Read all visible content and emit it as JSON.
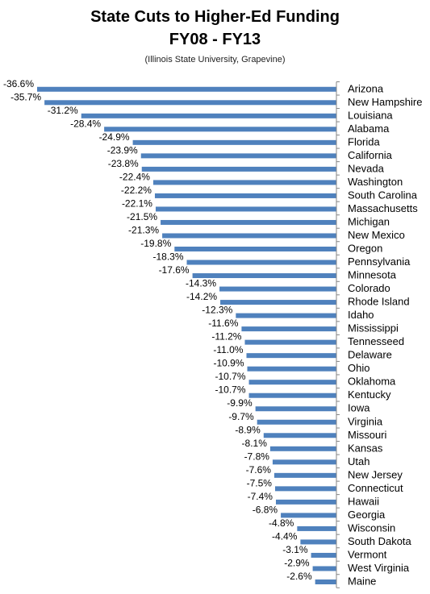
{
  "chart_data": {
    "type": "bar",
    "orientation": "horizontal",
    "title": "State Cuts to Higher-Ed Funding",
    "subtitle": "FY08 - FY13",
    "source": "(Illinois State University, Grapevine)",
    "xlabel": "",
    "ylabel": "",
    "categories": [
      "Arizona",
      "New Hampshire",
      "Louisiana",
      "Alabama",
      "Florida",
      "California",
      "Nevada",
      "Washington",
      "South Carolina",
      "Massachusetts",
      "Michigan",
      "New Mexico",
      "Oregon",
      "Pennsylvania",
      "Minnesota",
      "Colorado",
      "Rhode Island",
      "Idaho",
      "Mississippi",
      "Tennesseed",
      "Delaware",
      "Ohio",
      "Oklahoma",
      "Kentucky",
      "Iowa",
      "Virginia",
      "Missouri",
      "Kansas",
      "Utah",
      "New Jersey",
      "Connecticut",
      "Hawaii",
      "Georgia",
      "Wisconsin",
      "South Dakota",
      "Vermont",
      "West Virginia",
      "Maine"
    ],
    "values": [
      -36.6,
      -35.7,
      -31.2,
      -28.4,
      -24.9,
      -23.9,
      -23.8,
      -22.4,
      -22.2,
      -22.1,
      -21.5,
      -21.3,
      -19.8,
      -18.3,
      -17.6,
      -14.3,
      -14.2,
      -12.3,
      -11.6,
      -11.2,
      -11.0,
      -10.9,
      -10.7,
      -10.7,
      -9.9,
      -9.7,
      -8.9,
      -8.1,
      -7.8,
      -7.6,
      -7.5,
      -7.4,
      -6.8,
      -4.8,
      -4.4,
      -3.1,
      -2.9,
      -2.6
    ],
    "labels": [
      "-36.6%",
      "-35.7%",
      "-31.2%",
      "-28.4%",
      "-24.9%",
      "-23.9%",
      "-23.8%",
      "-22.4%",
      "-22.2%",
      "-22.1%",
      "-21.5%",
      "-21.3%",
      "-19.8%",
      "-18.3%",
      "-17.6%",
      "-14.3%",
      "-14.2%",
      "-12.3%",
      "-11.6%",
      "-11.2%",
      "-11.0%",
      "-10.9%",
      "-10.7%",
      "-10.7%",
      "-9.9%",
      "-9.7%",
      "-8.9%",
      "-8.1%",
      "-7.8%",
      "-7.6%",
      "-7.5%",
      "-7.4%",
      "-6.8%",
      "-4.8%",
      "-4.4%",
      "-3.1%",
      "-2.9%",
      "-2.6%"
    ],
    "value_format": "percent",
    "bar_color": "#4f81bd",
    "grid": false,
    "legend": "none"
  }
}
